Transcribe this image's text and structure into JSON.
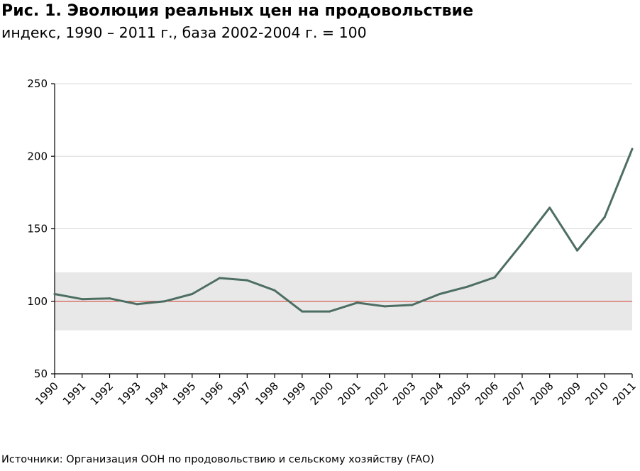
{
  "header": {
    "title": "Рис. 1. Эволюция реальных цен на продовольствие",
    "subtitle": "индекс, 1990 – 2011 г., база 2002-2004 г. = 100"
  },
  "footer": {
    "source": "Источники: Организация ООН по продовольствию и сельскому хозяйству (FAO)"
  },
  "chart_data": {
    "type": "line",
    "title": "Рис. 1. Эволюция реальных цен на продовольствие",
    "subtitle": "индекс, 1990 – 2011 г., база 2002-2004 г. = 100",
    "categories": [
      "1990",
      "1991",
      "1992",
      "1993",
      "1994",
      "1995",
      "1996",
      "1997",
      "1998",
      "1999",
      "2000",
      "2001",
      "2002",
      "2003",
      "2004",
      "2005",
      "2006",
      "2007",
      "2008",
      "2009",
      "2010",
      "2011"
    ],
    "series": [
      {
        "values": [
          105,
          101.5,
          102,
          98,
          100,
          105,
          116,
          114.5,
          107.5,
          93,
          93,
          99,
          96.5,
          97.5,
          105,
          110,
          116.5,
          140,
          164.5,
          135,
          158,
          205
        ],
        "color": "#4d6e63"
      }
    ],
    "ylim": [
      50,
      250
    ],
    "yticks": [
      50,
      100,
      150,
      200,
      250
    ],
    "band": {
      "from": 80,
      "to": 120,
      "color": "#e8e8e8"
    },
    "reference_line": {
      "value": 100,
      "color": "#d23c2a"
    },
    "grid": true,
    "gridline_color": "#d9d9d9",
    "legend": "none"
  }
}
